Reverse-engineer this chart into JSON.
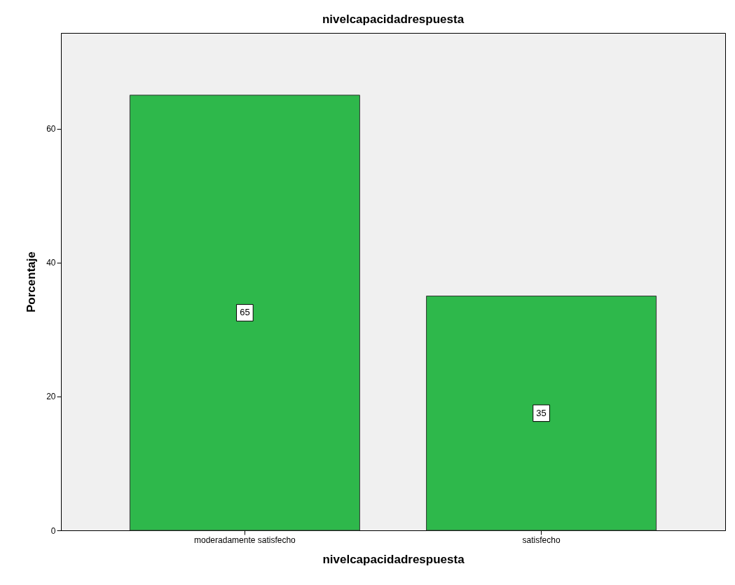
{
  "chart_data": {
    "type": "bar",
    "title": "nivelcapacidadrespuesta",
    "xlabel": "nivelcapacidadrespuesta",
    "ylabel": "Porcentaje",
    "categories": [
      "moderadamente satisfecho",
      "satisfecho"
    ],
    "values": [
      65,
      35
    ],
    "color": "#2eb84b",
    "ylim": [
      0,
      74.3
    ],
    "yticks": [
      0,
      20,
      40,
      60
    ],
    "grid": false,
    "data_labels": true
  }
}
